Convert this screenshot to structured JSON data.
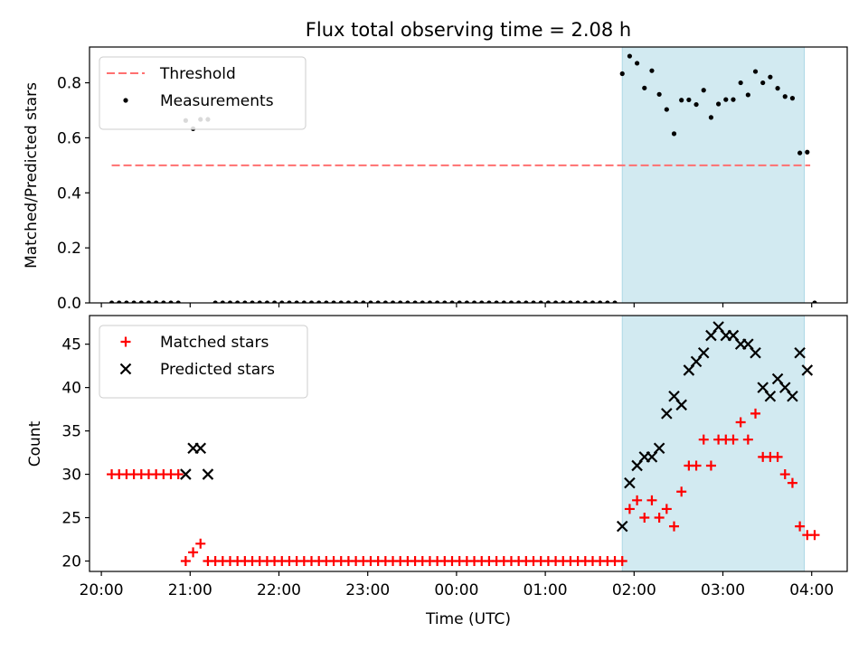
{
  "figure": {
    "title": "Flux total observing time = 2.08 h",
    "xlabel": "Time (UTC)",
    "xticks": [
      "20:00",
      "21:00",
      "22:00",
      "23:00",
      "00:00",
      "01:00",
      "02:00",
      "03:00",
      "04:00"
    ]
  },
  "colors": {
    "threshold": "#ff7070",
    "measurement": "#000000",
    "matched": "#ff0000",
    "predicted": "#000000",
    "shade": "#add8e6"
  },
  "chart_data": [
    {
      "type": "scatter",
      "ylabel": "Matched/Predicted stars",
      "yticks": [
        "0.0",
        "0.2",
        "0.4",
        "0.6",
        "0.8"
      ],
      "ylim": [
        0,
        0.93
      ],
      "xlim": [
        "19:52",
        "04:24"
      ],
      "shaded_region": [
        "01:52",
        "03:55"
      ],
      "legend": {
        "position": "top-left",
        "entries": [
          "Threshold",
          "Measurements"
        ]
      },
      "threshold": {
        "name": "Threshold",
        "value": 0.5,
        "x_range": [
          "20:07",
          "03:59"
        ],
        "style": "dashed"
      },
      "series": [
        {
          "name": "Measurements",
          "marker": "dot",
          "points": [
            [
              "20:07",
              0
            ],
            [
              "20:12",
              0
            ],
            [
              "20:17",
              0
            ],
            [
              "20:22",
              0
            ],
            [
              "20:27",
              0
            ],
            [
              "20:32",
              0
            ],
            [
              "20:37",
              0
            ],
            [
              "20:42",
              0
            ],
            [
              "20:47",
              0
            ],
            [
              "20:52",
              0
            ],
            [
              "20:57",
              0.663
            ],
            [
              "21:02",
              0.633
            ],
            [
              "21:07",
              0.667
            ],
            [
              "21:12",
              0.667
            ],
            [
              "21:17",
              0
            ],
            [
              "21:22",
              0
            ],
            [
              "21:27",
              0
            ],
            [
              "21:32",
              0
            ],
            [
              "21:37",
              0
            ],
            [
              "21:42",
              0
            ],
            [
              "21:47",
              0
            ],
            [
              "21:52",
              0
            ],
            [
              "21:57",
              0
            ],
            [
              "22:02",
              0
            ],
            [
              "22:07",
              0
            ],
            [
              "22:12",
              0
            ],
            [
              "22:17",
              0
            ],
            [
              "22:22",
              0
            ],
            [
              "22:27",
              0
            ],
            [
              "22:32",
              0
            ],
            [
              "22:37",
              0
            ],
            [
              "22:42",
              0
            ],
            [
              "22:47",
              0
            ],
            [
              "22:52",
              0
            ],
            [
              "22:57",
              0
            ],
            [
              "23:02",
              0
            ],
            [
              "23:07",
              0
            ],
            [
              "23:12",
              0
            ],
            [
              "23:17",
              0
            ],
            [
              "23:22",
              0
            ],
            [
              "23:27",
              0
            ],
            [
              "23:32",
              0
            ],
            [
              "23:37",
              0
            ],
            [
              "23:42",
              0
            ],
            [
              "23:47",
              0
            ],
            [
              "23:52",
              0
            ],
            [
              "23:57",
              0
            ],
            [
              "00:02",
              0
            ],
            [
              "00:07",
              0
            ],
            [
              "00:12",
              0
            ],
            [
              "00:17",
              0
            ],
            [
              "00:22",
              0
            ],
            [
              "00:27",
              0
            ],
            [
              "00:32",
              0
            ],
            [
              "00:37",
              0
            ],
            [
              "00:42",
              0
            ],
            [
              "00:47",
              0
            ],
            [
              "00:52",
              0
            ],
            [
              "00:57",
              0
            ],
            [
              "01:02",
              0
            ],
            [
              "01:07",
              0
            ],
            [
              "01:12",
              0
            ],
            [
              "01:17",
              0
            ],
            [
              "01:22",
              0
            ],
            [
              "01:27",
              0
            ],
            [
              "01:32",
              0
            ],
            [
              "01:37",
              0
            ],
            [
              "01:42",
              0
            ],
            [
              "01:47",
              0
            ],
            [
              "01:52",
              0.833
            ],
            [
              "01:57",
              0.897
            ],
            [
              "02:02",
              0.871
            ],
            [
              "02:07",
              0.781
            ],
            [
              "02:12",
              0.844
            ],
            [
              "02:17",
              0.758
            ],
            [
              "02:22",
              0.703
            ],
            [
              "02:27",
              0.615
            ],
            [
              "02:32",
              0.737
            ],
            [
              "02:37",
              0.738
            ],
            [
              "02:42",
              0.721
            ],
            [
              "02:47",
              0.773
            ],
            [
              "02:52",
              0.674
            ],
            [
              "02:57",
              0.723
            ],
            [
              "03:02",
              0.739
            ],
            [
              "03:07",
              0.739
            ],
            [
              "03:12",
              0.8
            ],
            [
              "03:17",
              0.756
            ],
            [
              "03:22",
              0.841
            ],
            [
              "03:27",
              0.8
            ],
            [
              "03:32",
              0.821
            ],
            [
              "03:37",
              0.78
            ],
            [
              "03:42",
              0.75
            ],
            [
              "03:47",
              0.744
            ],
            [
              "03:52",
              0.545
            ],
            [
              "03:57",
              0.548
            ],
            [
              "04:02",
              0
            ]
          ]
        }
      ]
    },
    {
      "type": "scatter",
      "ylabel": "Count",
      "yticks": [
        "20",
        "25",
        "30",
        "35",
        "40",
        "45"
      ],
      "ylim": [
        18.8,
        48.3
      ],
      "xlim": [
        "19:52",
        "04:24"
      ],
      "shaded_region": [
        "01:52",
        "03:55"
      ],
      "legend": {
        "position": "top-left",
        "entries": [
          "Matched stars",
          "Predicted stars"
        ]
      },
      "series": [
        {
          "name": "Matched stars",
          "marker": "plus",
          "points": [
            [
              "20:07",
              30
            ],
            [
              "20:12",
              30
            ],
            [
              "20:17",
              30
            ],
            [
              "20:22",
              30
            ],
            [
              "20:27",
              30
            ],
            [
              "20:32",
              30
            ],
            [
              "20:37",
              30
            ],
            [
              "20:42",
              30
            ],
            [
              "20:47",
              30
            ],
            [
              "20:52",
              30
            ],
            [
              "20:57",
              20
            ],
            [
              "21:02",
              21
            ],
            [
              "21:07",
              22
            ],
            [
              "21:12",
              20
            ],
            [
              "21:17",
              20
            ],
            [
              "21:22",
              20
            ],
            [
              "21:27",
              20
            ],
            [
              "21:32",
              20
            ],
            [
              "21:37",
              20
            ],
            [
              "21:42",
              20
            ],
            [
              "21:47",
              20
            ],
            [
              "21:52",
              20
            ],
            [
              "21:57",
              20
            ],
            [
              "22:02",
              20
            ],
            [
              "22:07",
              20
            ],
            [
              "22:12",
              20
            ],
            [
              "22:17",
              20
            ],
            [
              "22:22",
              20
            ],
            [
              "22:27",
              20
            ],
            [
              "22:32",
              20
            ],
            [
              "22:37",
              20
            ],
            [
              "22:42",
              20
            ],
            [
              "22:47",
              20
            ],
            [
              "22:52",
              20
            ],
            [
              "22:57",
              20
            ],
            [
              "23:02",
              20
            ],
            [
              "23:07",
              20
            ],
            [
              "23:12",
              20
            ],
            [
              "23:17",
              20
            ],
            [
              "23:22",
              20
            ],
            [
              "23:27",
              20
            ],
            [
              "23:32",
              20
            ],
            [
              "23:37",
              20
            ],
            [
              "23:42",
              20
            ],
            [
              "23:47",
              20
            ],
            [
              "23:52",
              20
            ],
            [
              "23:57",
              20
            ],
            [
              "00:02",
              20
            ],
            [
              "00:07",
              20
            ],
            [
              "00:12",
              20
            ],
            [
              "00:17",
              20
            ],
            [
              "00:22",
              20
            ],
            [
              "00:27",
              20
            ],
            [
              "00:32",
              20
            ],
            [
              "00:37",
              20
            ],
            [
              "00:42",
              20
            ],
            [
              "00:47",
              20
            ],
            [
              "00:52",
              20
            ],
            [
              "00:57",
              20
            ],
            [
              "01:02",
              20
            ],
            [
              "01:07",
              20
            ],
            [
              "01:12",
              20
            ],
            [
              "01:17",
              20
            ],
            [
              "01:22",
              20
            ],
            [
              "01:27",
              20
            ],
            [
              "01:32",
              20
            ],
            [
              "01:37",
              20
            ],
            [
              "01:42",
              20
            ],
            [
              "01:47",
              20
            ],
            [
              "01:52",
              20
            ],
            [
              "01:57",
              26
            ],
            [
              "02:02",
              27
            ],
            [
              "02:07",
              25
            ],
            [
              "02:12",
              27
            ],
            [
              "02:17",
              25
            ],
            [
              "02:22",
              26
            ],
            [
              "02:27",
              24
            ],
            [
              "02:32",
              28
            ],
            [
              "02:37",
              31
            ],
            [
              "02:42",
              31
            ],
            [
              "02:47",
              34
            ],
            [
              "02:52",
              31
            ],
            [
              "02:57",
              34
            ],
            [
              "03:02",
              34
            ],
            [
              "03:07",
              34
            ],
            [
              "03:12",
              36
            ],
            [
              "03:17",
              34
            ],
            [
              "03:22",
              37
            ],
            [
              "03:27",
              32
            ],
            [
              "03:32",
              32
            ],
            [
              "03:37",
              32
            ],
            [
              "03:42",
              30
            ],
            [
              "03:47",
              29
            ],
            [
              "03:52",
              24
            ],
            [
              "03:57",
              23
            ],
            [
              "04:02",
              23
            ]
          ]
        },
        {
          "name": "Predicted stars",
          "marker": "x",
          "points": [
            [
              "20:57",
              30
            ],
            [
              "21:02",
              33
            ],
            [
              "21:07",
              33
            ],
            [
              "21:12",
              30
            ],
            [
              "01:52",
              24
            ],
            [
              "01:57",
              29
            ],
            [
              "02:02",
              31
            ],
            [
              "02:07",
              32
            ],
            [
              "02:12",
              32
            ],
            [
              "02:17",
              33
            ],
            [
              "02:22",
              37
            ],
            [
              "02:27",
              39
            ],
            [
              "02:32",
              38
            ],
            [
              "02:37",
              42
            ],
            [
              "02:42",
              43
            ],
            [
              "02:47",
              44
            ],
            [
              "02:52",
              46
            ],
            [
              "02:57",
              47
            ],
            [
              "03:02",
              46
            ],
            [
              "03:07",
              46
            ],
            [
              "03:12",
              45
            ],
            [
              "03:17",
              45
            ],
            [
              "03:22",
              44
            ],
            [
              "03:27",
              40
            ],
            [
              "03:32",
              39
            ],
            [
              "03:37",
              41
            ],
            [
              "03:42",
              40
            ],
            [
              "03:47",
              39
            ],
            [
              "03:52",
              44
            ],
            [
              "03:57",
              42
            ]
          ]
        }
      ]
    }
  ]
}
